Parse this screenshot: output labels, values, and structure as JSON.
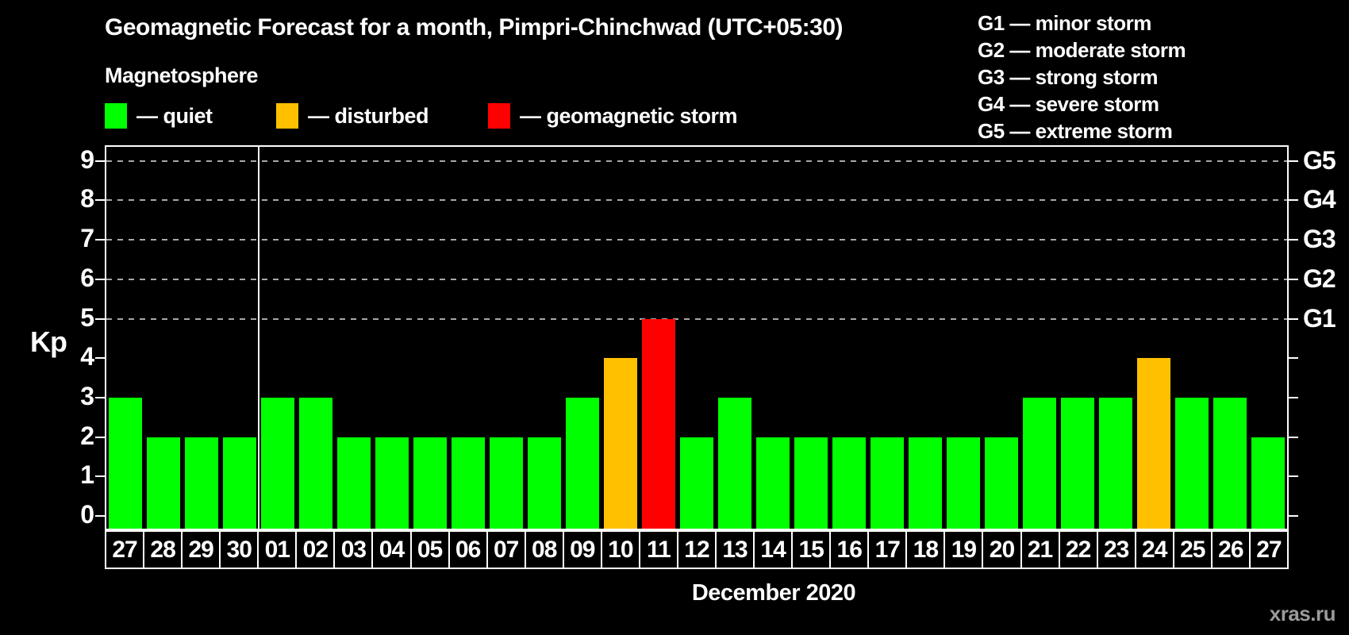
{
  "title": "Geomagnetic Forecast for a month, Pimpri-Chinchwad (UTC+05:30)",
  "subtitle": "Magnetosphere",
  "legend": {
    "quiet": {
      "label": "— quiet",
      "color": "#00ff00"
    },
    "disturbed": {
      "label": "— disturbed",
      "color": "#ffc000"
    },
    "storm": {
      "label": "— geomagnetic storm",
      "color": "#ff0000"
    }
  },
  "g_scale": [
    {
      "label": "G1 — minor storm"
    },
    {
      "label": "G2 — moderate storm"
    },
    {
      "label": "G3 — strong storm"
    },
    {
      "label": "G4 — severe storm"
    },
    {
      "label": "G5 — extreme storm"
    }
  ],
  "chart_data": {
    "type": "bar",
    "title": "Geomagnetic Forecast for a month, Pimpri-Chinchwad (UTC+05:30)",
    "xlabel": "December 2020",
    "ylabel": "Kp",
    "ylim": [
      0,
      9
    ],
    "yticks": [
      0,
      1,
      2,
      3,
      4,
      5,
      6,
      7,
      8,
      9
    ],
    "grid_levels": [
      5,
      6,
      7,
      8,
      9
    ],
    "grid_on": true,
    "legend_position": "top-left",
    "right_axis_labels": [
      {
        "label": "G1",
        "kp": 5
      },
      {
        "label": "G2",
        "kp": 6
      },
      {
        "label": "G3",
        "kp": 7
      },
      {
        "label": "G4",
        "kp": 8
      },
      {
        "label": "G5",
        "kp": 9
      }
    ],
    "categories": [
      "27",
      "28",
      "29",
      "30",
      "01",
      "02",
      "03",
      "04",
      "05",
      "06",
      "07",
      "08",
      "09",
      "10",
      "11",
      "12",
      "13",
      "14",
      "15",
      "16",
      "17",
      "18",
      "19",
      "20",
      "21",
      "22",
      "23",
      "24",
      "25",
      "26",
      "27"
    ],
    "values": [
      3,
      2,
      2,
      2,
      3,
      3,
      2,
      2,
      2,
      2,
      2,
      2,
      3,
      4,
      5,
      2,
      3,
      2,
      2,
      2,
      2,
      2,
      2,
      2,
      3,
      3,
      3,
      4,
      3,
      3,
      2
    ],
    "statuses": [
      "quiet",
      "quiet",
      "quiet",
      "quiet",
      "quiet",
      "quiet",
      "quiet",
      "quiet",
      "quiet",
      "quiet",
      "quiet",
      "quiet",
      "quiet",
      "disturbed",
      "storm",
      "quiet",
      "quiet",
      "quiet",
      "quiet",
      "quiet",
      "quiet",
      "quiet",
      "quiet",
      "quiet",
      "quiet",
      "quiet",
      "quiet",
      "disturbed",
      "quiet",
      "quiet",
      "quiet"
    ],
    "month_separator_after_index": 3
  },
  "footer": {
    "month": "December 2020",
    "watermark": "xras.ru"
  }
}
